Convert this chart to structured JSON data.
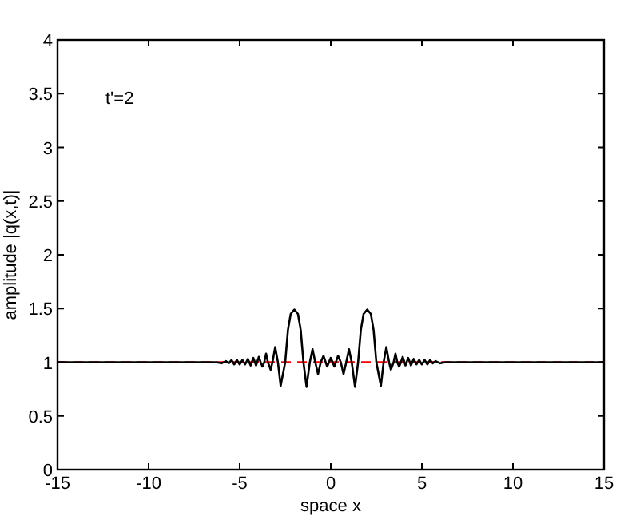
{
  "chart_data": {
    "type": "line",
    "xlabel": "space x",
    "ylabel": "amplitude |q(x,t)|",
    "annotations": [
      "t'=2"
    ],
    "xlim": [
      -15,
      15
    ],
    "ylim": [
      0,
      4
    ],
    "xticks": [
      -15,
      -10,
      -5,
      0,
      5,
      10,
      15
    ],
    "yticks": [
      0,
      0.5,
      1,
      1.5,
      2,
      2.5,
      3,
      3.5,
      4
    ],
    "grid": false,
    "marker": "none",
    "line_style": "solid",
    "ref_lines": [
      {
        "axis": "y",
        "value": 1,
        "color": "#ff0000",
        "line_style": "dashed"
      }
    ],
    "series": [
      {
        "color": "#000000",
        "x": [
          -15,
          -7,
          -6.3,
          -6,
          -5.75,
          -5.6,
          -5.45,
          -5.3,
          -5.15,
          -5,
          -4.85,
          -4.7,
          -4.55,
          -4.4,
          -4.25,
          -4.1,
          -3.95,
          -3.85,
          -3.75,
          -3.65,
          -3.55,
          -3.45,
          -3.3,
          -3.2,
          -3.05,
          -2.9,
          -2.75,
          -2.5,
          -2.35,
          -2.2,
          -2,
          -1.8,
          -1.65,
          -1.5,
          -1.33,
          -1.15,
          -1,
          -0.85,
          -0.7,
          -0.55,
          -0.4,
          -0.2,
          0,
          0.2,
          0.4,
          0.55,
          0.7,
          0.85,
          1,
          1.15,
          1.33,
          1.5,
          1.65,
          1.8,
          2,
          2.2,
          2.35,
          2.5,
          2.75,
          2.9,
          3.05,
          3.2,
          3.3,
          3.45,
          3.55,
          3.65,
          3.75,
          3.85,
          3.95,
          4.1,
          4.25,
          4.4,
          4.55,
          4.7,
          4.85,
          5,
          5.15,
          5.3,
          5.45,
          5.6,
          5.75,
          6,
          6.3,
          7,
          15
        ],
        "values": [
          1,
          1,
          1,
          0.99,
          1.01,
          0.99,
          1.02,
          0.98,
          1.02,
          0.98,
          1.02,
          0.98,
          1.03,
          0.97,
          1.04,
          0.97,
          1.05,
          1,
          0.96,
          1,
          1.08,
          1,
          0.93,
          1,
          1.14,
          1,
          0.78,
          1,
          1.3,
          1.45,
          1.49,
          1.45,
          1.3,
          1,
          0.77,
          1,
          1.12,
          1,
          0.89,
          1,
          1.06,
          0.96,
          1.04,
          0.96,
          1.06,
          1,
          0.89,
          1,
          1.12,
          1,
          0.77,
          1,
          1.3,
          1.45,
          1.49,
          1.45,
          1.3,
          1,
          0.78,
          1,
          1.14,
          1,
          0.93,
          1,
          1.08,
          1,
          0.96,
          1,
          1.05,
          0.97,
          1.04,
          0.97,
          1.03,
          0.98,
          1.02,
          0.98,
          1.02,
          0.98,
          1.02,
          0.99,
          1.01,
          0.99,
          1,
          1,
          1
        ]
      }
    ]
  }
}
